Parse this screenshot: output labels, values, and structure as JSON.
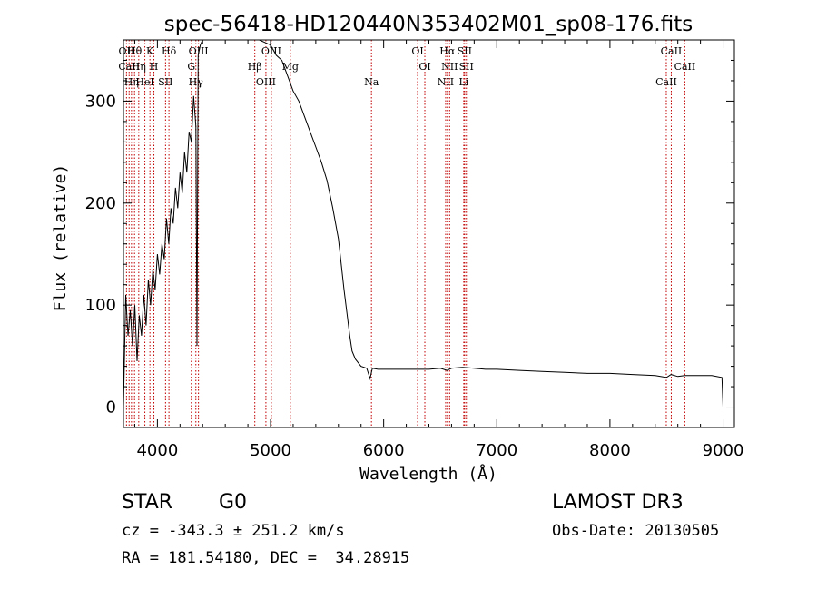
{
  "chart_data": {
    "type": "line",
    "title": "spec-56418-HD120440N353402M01_sp08-176.fits",
    "xlabel": "Wavelength (Å)",
    "ylabel": "Flux (relative)",
    "xlim": [
      3700,
      9100
    ],
    "ylim": [
      -20,
      360
    ],
    "xticks": [
      4000,
      5000,
      6000,
      7000,
      8000,
      9000
    ],
    "yticks": [
      0,
      100,
      200,
      300
    ],
    "series": [
      {
        "name": "flux",
        "x": [
          3700,
          3720,
          3740,
          3760,
          3780,
          3800,
          3820,
          3840,
          3860,
          3880,
          3900,
          3920,
          3940,
          3960,
          3980,
          4000,
          4020,
          4040,
          4060,
          4080,
          4100,
          4120,
          4140,
          4160,
          4180,
          4200,
          4220,
          4240,
          4260,
          4280,
          4300,
          4320,
          4340,
          4350,
          4360,
          4380,
          4400,
          4420,
          4440,
          4460,
          4500,
          4550,
          4600,
          4700,
          4800,
          4900,
          5000,
          5050,
          5100,
          5150,
          5200,
          5250,
          5300,
          5350,
          5400,
          5450,
          5500,
          5550,
          5600,
          5650,
          5700,
          5720,
          5750,
          5800,
          5850,
          5880,
          5890,
          5900,
          5950,
          6000,
          6100,
          6200,
          6300,
          6400,
          6500,
          6560,
          6600,
          6700,
          6800,
          6900,
          7000,
          7200,
          7400,
          7600,
          7800,
          8000,
          8200,
          8400,
          8500,
          8540,
          8600,
          8660,
          8700,
          8800,
          8900,
          8990,
          9000
        ],
        "y": [
          0,
          110,
          70,
          95,
          60,
          100,
          45,
          90,
          70,
          110,
          80,
          125,
          100,
          135,
          115,
          150,
          130,
          160,
          145,
          185,
          160,
          195,
          180,
          215,
          195,
          230,
          210,
          250,
          230,
          270,
          260,
          305,
          275,
          60,
          345,
          355,
          360,
          360,
          360,
          360,
          360,
          360,
          360,
          360,
          360,
          360,
          355,
          345,
          340,
          325,
          310,
          300,
          285,
          270,
          255,
          240,
          222,
          195,
          165,
          115,
          70,
          55,
          47,
          40,
          38,
          28,
          33,
          38,
          37,
          37,
          37,
          37,
          37,
          37,
          38,
          36,
          38,
          39,
          38,
          37,
          37,
          36,
          35,
          34,
          33,
          33,
          32,
          31,
          29,
          32,
          30,
          31,
          31,
          31,
          31,
          29,
          0
        ]
      }
    ],
    "lines": [
      {
        "lambda": 3727,
        "labels": [
          "OII"
        ]
      },
      {
        "lambda": 3750,
        "labels": [
          "CaII"
        ]
      },
      {
        "lambda": 3771,
        "labels": [
          "Hη"
        ]
      },
      {
        "lambda": 3798,
        "labels": [
          "Hθ"
        ]
      },
      {
        "lambda": 3835,
        "labels": [
          "Hη"
        ]
      },
      {
        "lambda": 3889,
        "labels": [
          "HeI"
        ]
      },
      {
        "lambda": 3934,
        "labels": [
          "K"
        ]
      },
      {
        "lambda": 3969,
        "labels": [
          "H"
        ]
      },
      {
        "lambda": 4072,
        "labels": [
          "SII"
        ]
      },
      {
        "lambda": 4102,
        "labels": [
          "Hδ"
        ]
      },
      {
        "lambda": 4300,
        "labels": [
          "G"
        ]
      },
      {
        "lambda": 4340,
        "labels": [
          "Hγ"
        ]
      },
      {
        "lambda": 4363,
        "labels": [
          "OIII"
        ]
      },
      {
        "lambda": 4861,
        "labels": [
          "Hβ"
        ]
      },
      {
        "lambda": 4959,
        "labels": [
          "OIII"
        ]
      },
      {
        "lambda": 5007,
        "labels": [
          "OIII"
        ]
      },
      {
        "lambda": 5175,
        "labels": [
          "Mg"
        ]
      },
      {
        "lambda": 5892,
        "labels": [
          "Na"
        ]
      },
      {
        "lambda": 6300,
        "labels": [
          "OI"
        ]
      },
      {
        "lambda": 6364,
        "labels": [
          "OI"
        ]
      },
      {
        "lambda": 6548,
        "labels": [
          "NII"
        ]
      },
      {
        "lambda": 6563,
        "labels": [
          "Hα"
        ]
      },
      {
        "lambda": 6583,
        "labels": [
          "NII"
        ]
      },
      {
        "lambda": 6708,
        "labels": [
          "Li"
        ]
      },
      {
        "lambda": 6716,
        "labels": [
          "SII"
        ]
      },
      {
        "lambda": 6731,
        "labels": [
          "SII"
        ]
      },
      {
        "lambda": 8498,
        "labels": [
          "CaII"
        ]
      },
      {
        "lambda": 8542,
        "labels": [
          "CaII"
        ]
      },
      {
        "lambda": 8662,
        "labels": [
          "CaII"
        ]
      }
    ]
  },
  "info": {
    "class_label": "STAR",
    "subclass": "G0",
    "survey": "LAMOST DR3",
    "cz": "cz = -343.3 ± 251.2 km/s",
    "obs_date": "Obs-Date: 20130505",
    "coords": "RA = 181.54180, DEC =  34.28915"
  }
}
